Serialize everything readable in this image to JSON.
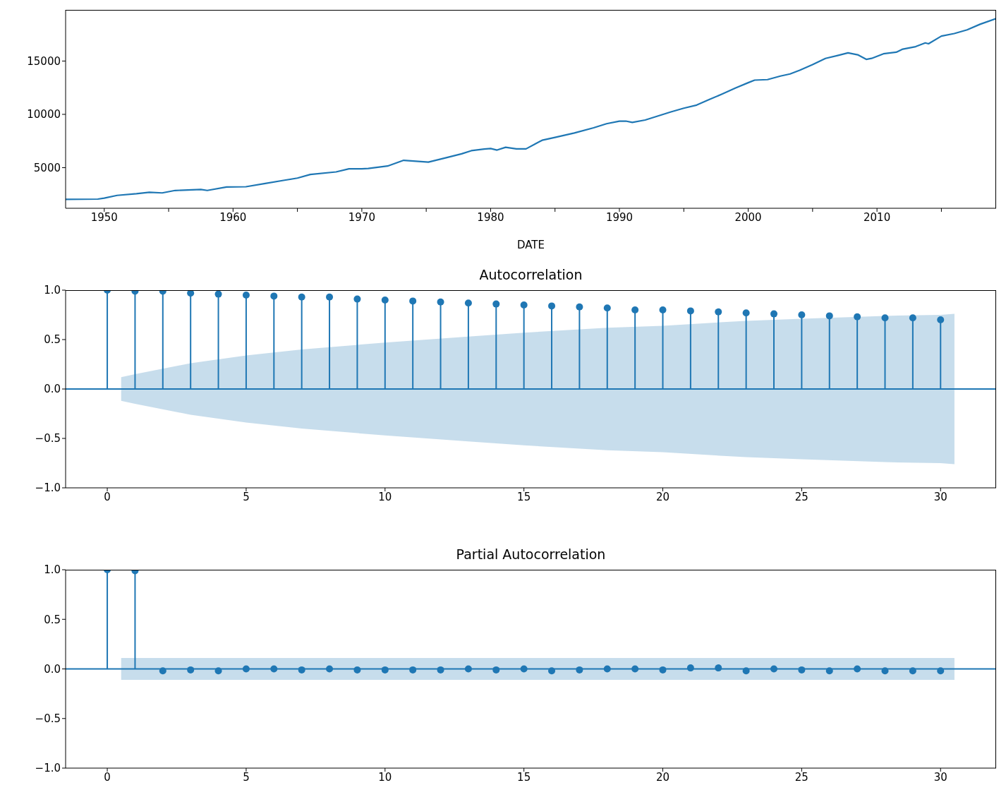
{
  "chart_data": [
    {
      "type": "line",
      "xlabel": "DATE",
      "color": "#1f77b4",
      "x": [
        "1947-01",
        "1949-07",
        "1950-01",
        "1951-01",
        "1952-07",
        "1953-07",
        "1954-07",
        "1955-07",
        "1957-07",
        "1958-01",
        "1959-07",
        "1961-01",
        "1962-07",
        "1964-01",
        "1965-01",
        "1966-01",
        "1968-01",
        "1969-01",
        "1970-01",
        "1970-07",
        "1972-01",
        "1973-04",
        "1975-03",
        "1976-07",
        "1977-10",
        "1978-07",
        "1979-07",
        "1980-01",
        "1980-07",
        "1981-03",
        "1982-01",
        "1982-10",
        "1983-07",
        "1984-01",
        "1985-01",
        "1986-07",
        "1988-01",
        "1989-01",
        "1990-01",
        "1990-07",
        "1991-01",
        "1992-01",
        "1993-01",
        "1994-01",
        "1995-01",
        "1996-01",
        "1997-01",
        "1998-01",
        "1999-01",
        "2000-01",
        "2000-07",
        "2001-07",
        "2002-07",
        "2003-04",
        "2004-01",
        "2005-01",
        "2006-01",
        "2007-01",
        "2007-10",
        "2008-07",
        "2009-03",
        "2009-08",
        "2010-07",
        "2011-07",
        "2012-01",
        "2013-01",
        "2013-10",
        "2014-01",
        "2015-01",
        "2016-01",
        "2017-01",
        "2018-01",
        "2019-04"
      ],
      "values": [
        2030,
        2050,
        2140,
        2400,
        2550,
        2690,
        2630,
        2860,
        2950,
        2860,
        3180,
        3210,
        3520,
        3820,
        4020,
        4360,
        4600,
        4890,
        4890,
        4920,
        5150,
        5690,
        5520,
        5920,
        6300,
        6590,
        6740,
        6790,
        6650,
        6910,
        6760,
        6760,
        7250,
        7570,
        7840,
        8250,
        8740,
        9120,
        9360,
        9370,
        9240,
        9470,
        9850,
        10230,
        10580,
        10870,
        11400,
        11920,
        12470,
        12970,
        13210,
        13260,
        13590,
        13790,
        14140,
        14660,
        15250,
        15540,
        15770,
        15590,
        15160,
        15250,
        15680,
        15830,
        16120,
        16350,
        16700,
        16620,
        17340,
        17580,
        17930,
        18450,
        18980
      ],
      "xlim": [
        "1947-01",
        "2019-04"
      ],
      "xticks": [
        "1950",
        {
          "value": "1955",
          "label": null
        },
        "1960",
        {
          "value": "1965",
          "label": null
        },
        "1970",
        {
          "value": "1975",
          "label": null
        },
        "1980",
        {
          "value": "1985",
          "label": null
        },
        "1990",
        {
          "value": "1995",
          "label": null
        },
        "2000",
        {
          "value": "2005",
          "label": null
        },
        "2010",
        {
          "value": "2015",
          "label": null
        }
      ],
      "ylim": [
        1190,
        19800
      ],
      "yticks": [
        5000,
        10000,
        15000
      ]
    },
    {
      "type": "lollipop",
      "title": "Autocorrelation",
      "series": [
        {
          "type": "lollipop",
          "color": "#1f77b4",
          "marker": "circle",
          "x": [
            0,
            1,
            2,
            3,
            4,
            5,
            6,
            7,
            8,
            9,
            10,
            11,
            12,
            13,
            14,
            15,
            16,
            17,
            18,
            19,
            20,
            21,
            22,
            23,
            24,
            25,
            26,
            27,
            28,
            29,
            30
          ],
          "values": [
            1.0,
            0.99,
            0.99,
            0.97,
            0.96,
            0.95,
            0.94,
            0.93,
            0.93,
            0.91,
            0.9,
            0.89,
            0.88,
            0.87,
            0.86,
            0.85,
            0.84,
            0.83,
            0.82,
            0.8,
            0.8,
            0.79,
            0.78,
            0.77,
            0.76,
            0.75,
            0.74,
            0.73,
            0.72,
            0.72,
            0.7
          ]
        },
        {
          "type": "line",
          "color": "#1f77b4",
          "x": [
            0.5,
            1,
            3,
            5,
            7,
            10,
            13,
            15,
            18,
            20,
            23,
            25,
            28,
            30,
            30.5
          ],
          "values": [
            null,
            null,
            null,
            null,
            null,
            null,
            null,
            null,
            null,
            null,
            null,
            null,
            null,
            null,
            null
          ],
          "lower": [
            -0.12,
            -0.15,
            -0.26,
            -0.34,
            -0.4,
            -0.47,
            -0.53,
            -0.57,
            -0.62,
            -0.64,
            -0.69,
            -0.71,
            -0.74,
            -0.75,
            -0.76
          ],
          "upper": [
            0.12,
            0.15,
            0.26,
            0.34,
            0.4,
            0.47,
            0.53,
            0.57,
            0.62,
            0.64,
            0.69,
            0.71,
            0.74,
            0.75,
            0.76
          ]
        }
      ],
      "ref_lines": [
        {
          "axis": "y",
          "value": 0,
          "color": "#1f77b4"
        }
      ],
      "xlim": [
        -1.5,
        32
      ],
      "xticks": [
        0,
        5,
        10,
        15,
        20,
        25,
        30
      ],
      "ylim": [
        -1,
        1
      ],
      "yticks": [
        {
          "value": -1,
          "label": "−1.0"
        },
        {
          "value": -0.5,
          "label": "−0.5"
        },
        {
          "value": 0,
          "label": "0.0"
        },
        {
          "value": 0.5,
          "label": "0.5"
        },
        {
          "value": 1,
          "label": "1.0"
        }
      ]
    },
    {
      "type": "lollipop",
      "title": "Partial Autocorrelation",
      "series": [
        {
          "type": "lollipop",
          "color": "#1f77b4",
          "marker": "circle",
          "x": [
            0,
            1,
            2,
            3,
            4,
            5,
            6,
            7,
            8,
            9,
            10,
            11,
            12,
            13,
            14,
            15,
            16,
            17,
            18,
            19,
            20,
            21,
            22,
            23,
            24,
            25,
            26,
            27,
            28,
            29,
            30
          ],
          "values": [
            1.0,
            0.99,
            -0.02,
            -0.01,
            -0.02,
            0.0,
            0.0,
            -0.01,
            0.0,
            -0.01,
            -0.01,
            -0.01,
            -0.01,
            0.0,
            -0.01,
            0.0,
            -0.02,
            -0.01,
            0.0,
            0.0,
            -0.01,
            0.01,
            0.01,
            -0.02,
            0.0,
            -0.01,
            -0.02,
            0.0,
            -0.02,
            -0.02,
            -0.02
          ]
        },
        {
          "type": "line",
          "color": "#1f77b4",
          "x": [
            0.5,
            30.5
          ],
          "values": [
            null,
            null
          ],
          "lower": [
            -0.11,
            -0.11
          ],
          "upper": [
            0.11,
            0.11
          ]
        }
      ],
      "ref_lines": [
        {
          "axis": "y",
          "value": 0,
          "color": "#1f77b4"
        }
      ],
      "xlim": [
        -1.5,
        32
      ],
      "xticks": [
        0,
        5,
        10,
        15,
        20,
        25,
        30
      ],
      "ylim": [
        -1,
        1
      ],
      "yticks": [
        {
          "value": -1,
          "label": "−1.0"
        },
        {
          "value": -0.5,
          "label": "−0.5"
        },
        {
          "value": 0,
          "label": "0.0"
        },
        {
          "value": 0.5,
          "label": "0.5"
        },
        {
          "value": 1,
          "label": "1.0"
        }
      ]
    }
  ]
}
